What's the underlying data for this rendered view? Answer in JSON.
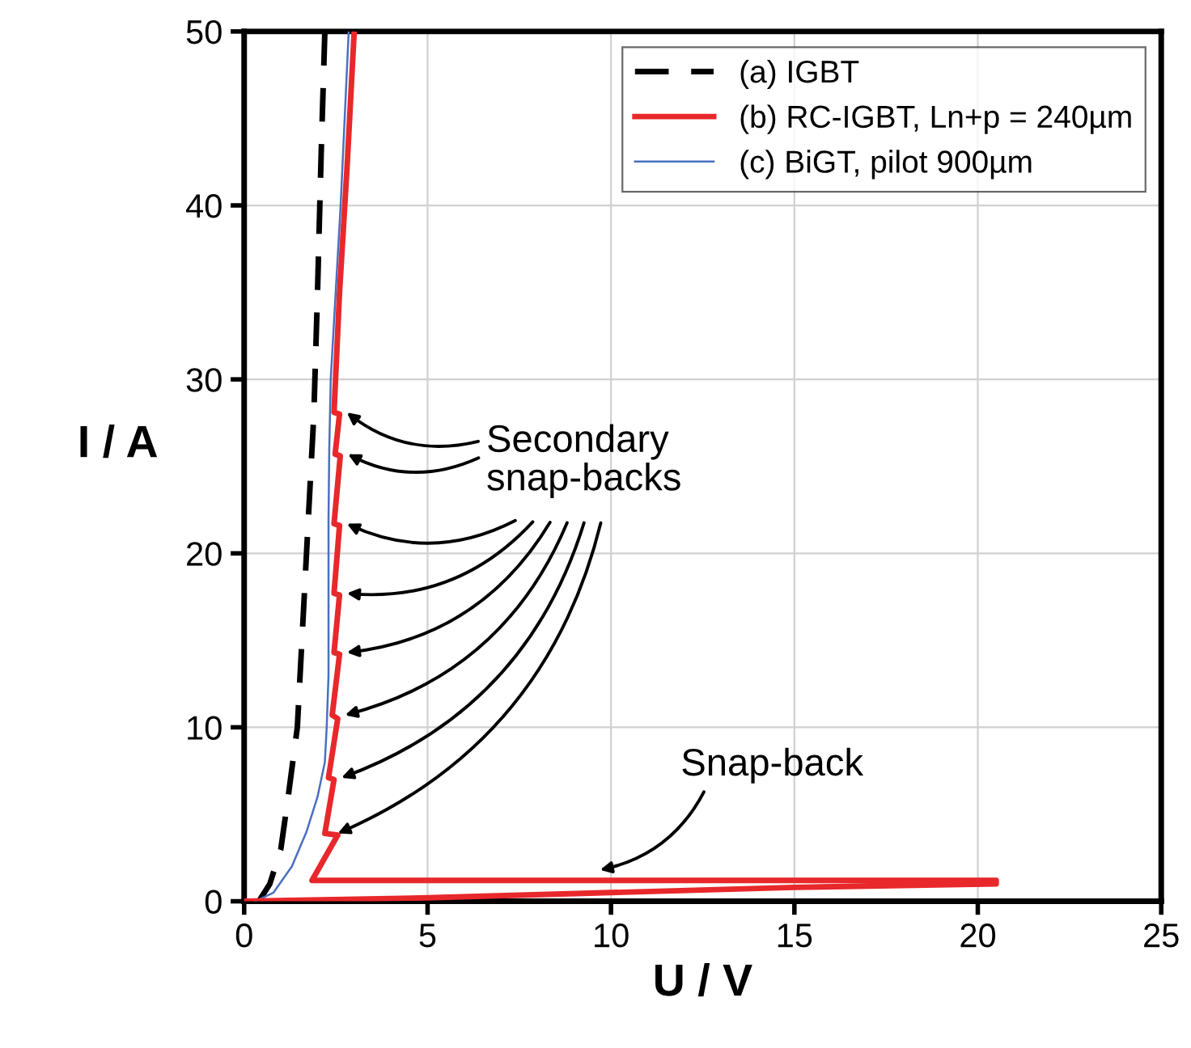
{
  "chart_data": {
    "type": "line",
    "xlabel": "U / V",
    "ylabel": "I / A",
    "xlim": [
      0,
      25
    ],
    "ylim": [
      0,
      50
    ],
    "xticks": [
      0,
      5,
      10,
      15,
      20,
      25
    ],
    "yticks": [
      0,
      10,
      20,
      30,
      40,
      50
    ],
    "grid": true,
    "legend": "top right",
    "series": [
      {
        "name": "(a) IGBT",
        "color": "#000000",
        "line_style": "dashed",
        "x": [
          0.4,
          0.7,
          1.0,
          1.2,
          1.45,
          1.6,
          1.75,
          1.9,
          2.0,
          2.1,
          2.2
        ],
        "values": [
          0,
          1,
          3,
          6,
          10,
          16,
          22,
          28,
          35,
          43,
          50
        ]
      },
      {
        "name": "(b) RC-IGBT, Ln+p = 240µm",
        "color": "#e8282b",
        "line_style": "solid",
        "x": [
          0,
          5,
          10,
          15,
          20.5,
          20.5,
          1.85,
          2.55,
          2.2,
          2.45,
          2.3,
          2.55,
          2.4,
          2.6,
          2.45,
          2.6,
          2.45,
          2.6,
          2.45,
          2.62,
          2.48,
          2.6,
          2.45,
          2.6,
          2.8,
          3.0
        ],
        "values": [
          0,
          0.2,
          0.5,
          0.8,
          1.0,
          1.2,
          1.2,
          3.8,
          3.9,
          7.0,
          7.1,
          10.5,
          10.7,
          14.2,
          14.3,
          17.6,
          17.7,
          21.6,
          21.7,
          25.6,
          25.7,
          28.0,
          28.1,
          35,
          42,
          50
        ]
      },
      {
        "name": "(c) BiGT, pilot 900µm",
        "color": "#4a6fc0",
        "line_style": "solid",
        "x": [
          0.3,
          0.8,
          1.3,
          1.7,
          2.0,
          2.2,
          2.25,
          2.3,
          2.3,
          2.3,
          2.3,
          2.32,
          2.36,
          2.63,
          2.85
        ],
        "values": [
          0,
          0.5,
          2,
          4,
          6,
          8,
          10,
          13,
          15,
          18,
          22,
          26,
          30,
          40,
          50
        ]
      }
    ],
    "annotations": [
      "Secondary\nsnap-backs",
      {
        "text": "Snap-back",
        "x": 9.7,
        "y": 1.8
      }
    ]
  }
}
